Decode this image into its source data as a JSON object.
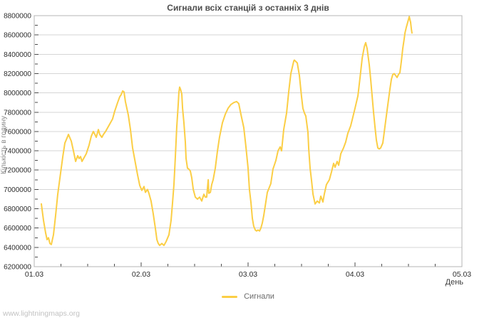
{
  "page": {
    "watermark": "www.lightningmaps.org",
    "background": "#ffffff"
  },
  "colors": {
    "series": "#fbce45",
    "grid": "#d6d6d6",
    "border": "#b4b4b4",
    "tick": "#4a4a4a",
    "tick_label": "#2e2e2e",
    "title": "#4d4d4d"
  },
  "chart_data": {
    "type": "line",
    "title": "Сигнали всіх станцій з останніх 3 днів",
    "xlabel": "День",
    "ylabel": "Кількість в годину",
    "xlim": [
      0,
      4
    ],
    "ylim": [
      6200000,
      8800000
    ],
    "y_tick_step": 200000,
    "y_minor_step": 100000,
    "x_tick_values": [
      0,
      1,
      2,
      3,
      4
    ],
    "x_tick_labels": [
      "01.03",
      "02.03",
      "03.03",
      "04.03",
      "05.03"
    ],
    "x_minor_step": 0.25,
    "grid": "horizontal-only",
    "legend": {
      "position": "bottom-center",
      "entries": [
        {
          "label": "Сигнали",
          "color": "#fbce45"
        }
      ]
    },
    "series": [
      {
        "name": "Сигнали",
        "color": "#fbce45",
        "points": [
          [
            0.067,
            6850000
          ],
          [
            0.087,
            6680000
          ],
          [
            0.107,
            6550000
          ],
          [
            0.12,
            6480000
          ],
          [
            0.133,
            6500000
          ],
          [
            0.147,
            6440000
          ],
          [
            0.16,
            6430000
          ],
          [
            0.18,
            6530000
          ],
          [
            0.2,
            6730000
          ],
          [
            0.22,
            6950000
          ],
          [
            0.247,
            7170000
          ],
          [
            0.267,
            7340000
          ],
          [
            0.287,
            7480000
          ],
          [
            0.313,
            7550000
          ],
          [
            0.32,
            7570000
          ],
          [
            0.347,
            7500000
          ],
          [
            0.367,
            7400000
          ],
          [
            0.387,
            7290000
          ],
          [
            0.407,
            7350000
          ],
          [
            0.42,
            7320000
          ],
          [
            0.433,
            7340000
          ],
          [
            0.447,
            7290000
          ],
          [
            0.467,
            7330000
          ],
          [
            0.487,
            7370000
          ],
          [
            0.513,
            7460000
          ],
          [
            0.533,
            7550000
          ],
          [
            0.553,
            7600000
          ],
          [
            0.567,
            7570000
          ],
          [
            0.58,
            7540000
          ],
          [
            0.6,
            7620000
          ],
          [
            0.613,
            7570000
          ],
          [
            0.633,
            7540000
          ],
          [
            0.647,
            7570000
          ],
          [
            0.667,
            7600000
          ],
          [
            0.687,
            7640000
          ],
          [
            0.713,
            7690000
          ],
          [
            0.733,
            7730000
          ],
          [
            0.753,
            7810000
          ],
          [
            0.78,
            7900000
          ],
          [
            0.8,
            7960000
          ],
          [
            0.813,
            7980000
          ],
          [
            0.827,
            8020000
          ],
          [
            0.84,
            8010000
          ],
          [
            0.853,
            7910000
          ],
          [
            0.88,
            7770000
          ],
          [
            0.9,
            7620000
          ],
          [
            0.92,
            7430000
          ],
          [
            0.947,
            7270000
          ],
          [
            0.967,
            7150000
          ],
          [
            0.987,
            7040000
          ],
          [
            1.007,
            6990000
          ],
          [
            1.027,
            7030000
          ],
          [
            1.04,
            6970000
          ],
          [
            1.06,
            7000000
          ],
          [
            1.073,
            6960000
          ],
          [
            1.093,
            6880000
          ],
          [
            1.113,
            6750000
          ],
          [
            1.133,
            6600000
          ],
          [
            1.147,
            6480000
          ],
          [
            1.16,
            6440000
          ],
          [
            1.173,
            6420000
          ],
          [
            1.193,
            6440000
          ],
          [
            1.213,
            6420000
          ],
          [
            1.233,
            6460000
          ],
          [
            1.26,
            6530000
          ],
          [
            1.28,
            6680000
          ],
          [
            1.293,
            6850000
          ],
          [
            1.307,
            7050000
          ],
          [
            1.32,
            7340000
          ],
          [
            1.333,
            7640000
          ],
          [
            1.347,
            7880000
          ],
          [
            1.353,
            8000000
          ],
          [
            1.36,
            8060000
          ],
          [
            1.367,
            8040000
          ],
          [
            1.38,
            7990000
          ],
          [
            1.387,
            7840000
          ],
          [
            1.4,
            7690000
          ],
          [
            1.413,
            7490000
          ],
          [
            1.42,
            7320000
          ],
          [
            1.433,
            7220000
          ],
          [
            1.447,
            7210000
          ],
          [
            1.46,
            7190000
          ],
          [
            1.473,
            7120000
          ],
          [
            1.487,
            7000000
          ],
          [
            1.507,
            6920000
          ],
          [
            1.527,
            6900000
          ],
          [
            1.547,
            6920000
          ],
          [
            1.567,
            6880000
          ],
          [
            1.587,
            6950000
          ],
          [
            1.6,
            6920000
          ],
          [
            1.613,
            6920000
          ],
          [
            1.627,
            7100000
          ],
          [
            1.633,
            6960000
          ],
          [
            1.647,
            6970000
          ],
          [
            1.66,
            7050000
          ],
          [
            1.673,
            7100000
          ],
          [
            1.693,
            7220000
          ],
          [
            1.713,
            7390000
          ],
          [
            1.733,
            7540000
          ],
          [
            1.76,
            7690000
          ],
          [
            1.787,
            7780000
          ],
          [
            1.813,
            7840000
          ],
          [
            1.84,
            7880000
          ],
          [
            1.867,
            7900000
          ],
          [
            1.893,
            7910000
          ],
          [
            1.913,
            7890000
          ],
          [
            1.933,
            7780000
          ],
          [
            1.96,
            7640000
          ],
          [
            1.98,
            7440000
          ],
          [
            2.0,
            7220000
          ],
          [
            2.013,
            7000000
          ],
          [
            2.027,
            6860000
          ],
          [
            2.04,
            6700000
          ],
          [
            2.053,
            6620000
          ],
          [
            2.067,
            6580000
          ],
          [
            2.08,
            6570000
          ],
          [
            2.093,
            6580000
          ],
          [
            2.107,
            6570000
          ],
          [
            2.12,
            6600000
          ],
          [
            2.133,
            6650000
          ],
          [
            2.147,
            6730000
          ],
          [
            2.18,
            6970000
          ],
          [
            2.213,
            7060000
          ],
          [
            2.233,
            7210000
          ],
          [
            2.26,
            7300000
          ],
          [
            2.28,
            7400000
          ],
          [
            2.3,
            7440000
          ],
          [
            2.313,
            7400000
          ],
          [
            2.333,
            7620000
          ],
          [
            2.36,
            7790000
          ],
          [
            2.38,
            8010000
          ],
          [
            2.4,
            8200000
          ],
          [
            2.427,
            8330000
          ],
          [
            2.433,
            8340000
          ],
          [
            2.46,
            8310000
          ],
          [
            2.48,
            8180000
          ],
          [
            2.5,
            7960000
          ],
          [
            2.513,
            7840000
          ],
          [
            2.527,
            7790000
          ],
          [
            2.54,
            7760000
          ],
          [
            2.56,
            7590000
          ],
          [
            2.567,
            7420000
          ],
          [
            2.58,
            7220000
          ],
          [
            2.593,
            7100000
          ],
          [
            2.607,
            6950000
          ],
          [
            2.627,
            6850000
          ],
          [
            2.647,
            6880000
          ],
          [
            2.667,
            6860000
          ],
          [
            2.68,
            6930000
          ],
          [
            2.7,
            6870000
          ],
          [
            2.713,
            6950000
          ],
          [
            2.733,
            7050000
          ],
          [
            2.76,
            7100000
          ],
          [
            2.78,
            7180000
          ],
          [
            2.8,
            7270000
          ],
          [
            2.813,
            7230000
          ],
          [
            2.833,
            7290000
          ],
          [
            2.847,
            7250000
          ],
          [
            2.867,
            7370000
          ],
          [
            2.893,
            7430000
          ],
          [
            2.913,
            7490000
          ],
          [
            2.933,
            7580000
          ],
          [
            2.96,
            7660000
          ],
          [
            2.98,
            7750000
          ],
          [
            3.0,
            7840000
          ],
          [
            3.027,
            7970000
          ],
          [
            3.047,
            8160000
          ],
          [
            3.067,
            8360000
          ],
          [
            3.087,
            8480000
          ],
          [
            3.1,
            8520000
          ],
          [
            3.113,
            8460000
          ],
          [
            3.133,
            8290000
          ],
          [
            3.147,
            8140000
          ],
          [
            3.16,
            7970000
          ],
          [
            3.173,
            7800000
          ],
          [
            3.187,
            7650000
          ],
          [
            3.2,
            7510000
          ],
          [
            3.213,
            7430000
          ],
          [
            3.227,
            7420000
          ],
          [
            3.24,
            7430000
          ],
          [
            3.26,
            7480000
          ],
          [
            3.28,
            7650000
          ],
          [
            3.3,
            7820000
          ],
          [
            3.327,
            8040000
          ],
          [
            3.34,
            8140000
          ],
          [
            3.353,
            8190000
          ],
          [
            3.367,
            8200000
          ],
          [
            3.38,
            8180000
          ],
          [
            3.393,
            8160000
          ],
          [
            3.407,
            8190000
          ],
          [
            3.42,
            8210000
          ],
          [
            3.433,
            8320000
          ],
          [
            3.447,
            8460000
          ],
          [
            3.46,
            8560000
          ],
          [
            3.467,
            8620000
          ],
          [
            3.48,
            8680000
          ],
          [
            3.493,
            8730000
          ],
          [
            3.5,
            8760000
          ],
          [
            3.507,
            8790000
          ],
          [
            3.52,
            8730000
          ],
          [
            3.527,
            8660000
          ],
          [
            3.533,
            8620000
          ]
        ]
      }
    ]
  }
}
